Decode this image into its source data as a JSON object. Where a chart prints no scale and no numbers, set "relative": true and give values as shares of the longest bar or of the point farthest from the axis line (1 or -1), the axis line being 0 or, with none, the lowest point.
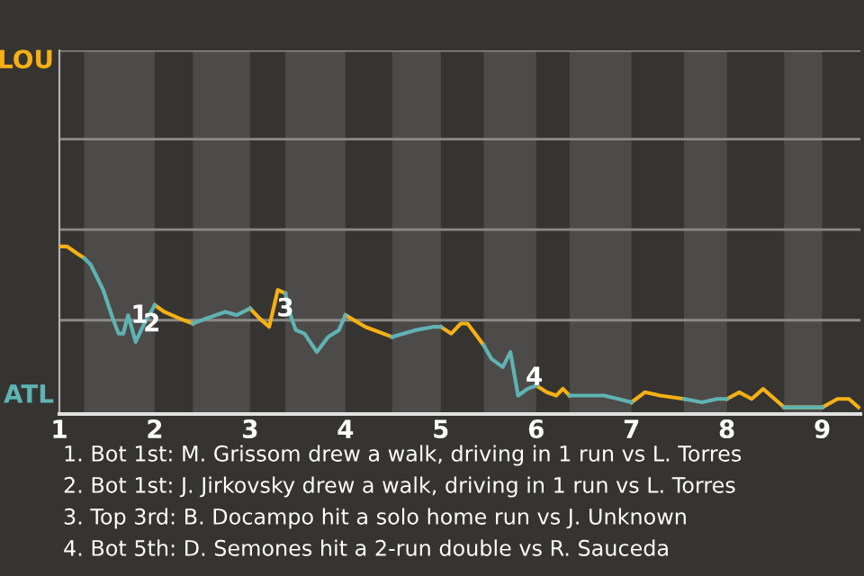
{
  "chart_data": {
    "type": "line",
    "relative": true,
    "x": [
      1,
      1.08,
      1.18,
      1.26,
      1.33,
      1.46,
      1.56,
      1.62,
      1.67,
      1.72,
      1.8,
      1.89,
      2,
      2.1,
      2.26,
      2.4,
      2.54,
      2.74,
      2.86,
      3,
      3.1,
      3.2,
      3.29,
      3.37,
      3.41,
      3.48,
      3.57,
      3.7,
      3.82,
      3.93,
      4,
      4.21,
      4.49,
      4.73,
      4.92,
      5,
      5.11,
      5.21,
      5.28,
      5.36,
      5.45,
      5.53,
      5.65,
      5.73,
      5.81,
      5.91,
      6,
      6.11,
      6.21,
      6.28,
      6.35,
      6.46,
      6.71,
      6.86,
      7,
      7.14,
      7.3,
      7.55,
      7.74,
      7.9,
      8,
      8.13,
      8.26,
      8.38,
      8.6,
      9,
      9.16,
      9.28,
      9.38
    ],
    "series": [
      {
        "name": "LOU",
        "color": "#f5b014",
        "values": [
          1,
          1,
          0.96,
          0.93,
          null,
          null,
          null,
          null,
          null,
          null,
          null,
          null,
          0.65,
          0.61,
          0.57,
          0.54,
          null,
          null,
          null,
          0.63,
          0.57,
          0.52,
          0.74,
          0.72,
          null,
          null,
          null,
          null,
          null,
          null,
          0.59,
          0.52,
          0.46,
          null,
          null,
          0.52,
          0.48,
          0.54,
          0.54,
          0.48,
          0.41,
          null,
          null,
          null,
          null,
          null,
          0.17,
          0.13,
          0.11,
          0.15,
          0.11,
          null,
          null,
          null,
          0.07,
          0.13,
          0.11,
          0.09,
          null,
          null,
          0.09,
          0.13,
          0.09,
          0.15,
          0.04,
          0.04,
          0.09,
          0.09,
          0.04
        ]
      },
      {
        "name": "ATL",
        "color": "#5fb3b3",
        "values": [
          null,
          null,
          null,
          0.93,
          0.89,
          0.74,
          0.57,
          0.48,
          0.48,
          0.59,
          0.43,
          0.54,
          0.65,
          null,
          null,
          0.54,
          0.57,
          0.61,
          0.59,
          0.63,
          null,
          null,
          null,
          0.72,
          0.61,
          0.5,
          0.48,
          0.37,
          0.46,
          0.5,
          0.59,
          null,
          0.46,
          0.5,
          0.52,
          0.52,
          null,
          null,
          null,
          null,
          0.41,
          0.33,
          0.28,
          0.37,
          0.11,
          0.15,
          0.17,
          null,
          null,
          null,
          0.11,
          0.11,
          0.11,
          0.09,
          0.07,
          null,
          null,
          0.09,
          0.07,
          0.09,
          0.09,
          null,
          null,
          null,
          0.04,
          0.04,
          null,
          null,
          null
        ]
      }
    ],
    "xlim": [
      1,
      9.4
    ],
    "xticks": [
      1,
      2,
      3,
      4,
      5,
      6,
      7,
      8,
      9
    ],
    "ref_lines": [
      {
        "axis": "y",
        "value": 0.56,
        "label": null,
        "color": "#8a8a86"
      },
      {
        "axis": "y",
        "value": 1.1,
        "label": null,
        "color": "#8a8a86"
      },
      {
        "axis": "y",
        "value": 1.64,
        "label": null,
        "color": "#8a8a86"
      },
      {
        "axis": "y",
        "value": 2.17,
        "label": null,
        "color": "#8a8a86"
      }
    ],
    "bands": [
      {
        "axis": "x",
        "from": 1.26,
        "to": 2,
        "color": "#4d4b49"
      },
      {
        "axis": "x",
        "from": 2.4,
        "to": 3,
        "color": "#4d4b49"
      },
      {
        "axis": "x",
        "from": 3.37,
        "to": 4,
        "color": "#4d4b49"
      },
      {
        "axis": "x",
        "from": 4.49,
        "to": 5,
        "color": "#4d4b49"
      },
      {
        "axis": "x",
        "from": 5.45,
        "to": 6,
        "color": "#4d4b49"
      },
      {
        "axis": "x",
        "from": 6.35,
        "to": 7,
        "color": "#4d4b49"
      },
      {
        "axis": "x",
        "from": 7.55,
        "to": 8,
        "color": "#4d4b49"
      },
      {
        "axis": "x",
        "from": 8.6,
        "to": 9,
        "color": "#4d4b49"
      }
    ],
    "annotations": [
      {
        "text": "1",
        "x": 1.67,
        "y": 0.48
      },
      {
        "text": "2",
        "x": 1.8,
        "y": 0.43
      },
      {
        "text": "3",
        "x": 3.2,
        "y": 0.52
      },
      {
        "text": "4",
        "x": 5.81,
        "y": 0.11
      },
      "1. Bot 1st: M. Grissom drew a walk, driving in 1 run vs L. Torres",
      "2. Bot 1st: J. Jirkovsky drew a walk, driving in 1 run vs L. Torres",
      "3. Top 3rd: B. Docampo hit a solo home run vs J. Unknown",
      "4. Bot 5th: D. Semones hit a 2-run double vs R. Sauceda"
    ]
  }
}
